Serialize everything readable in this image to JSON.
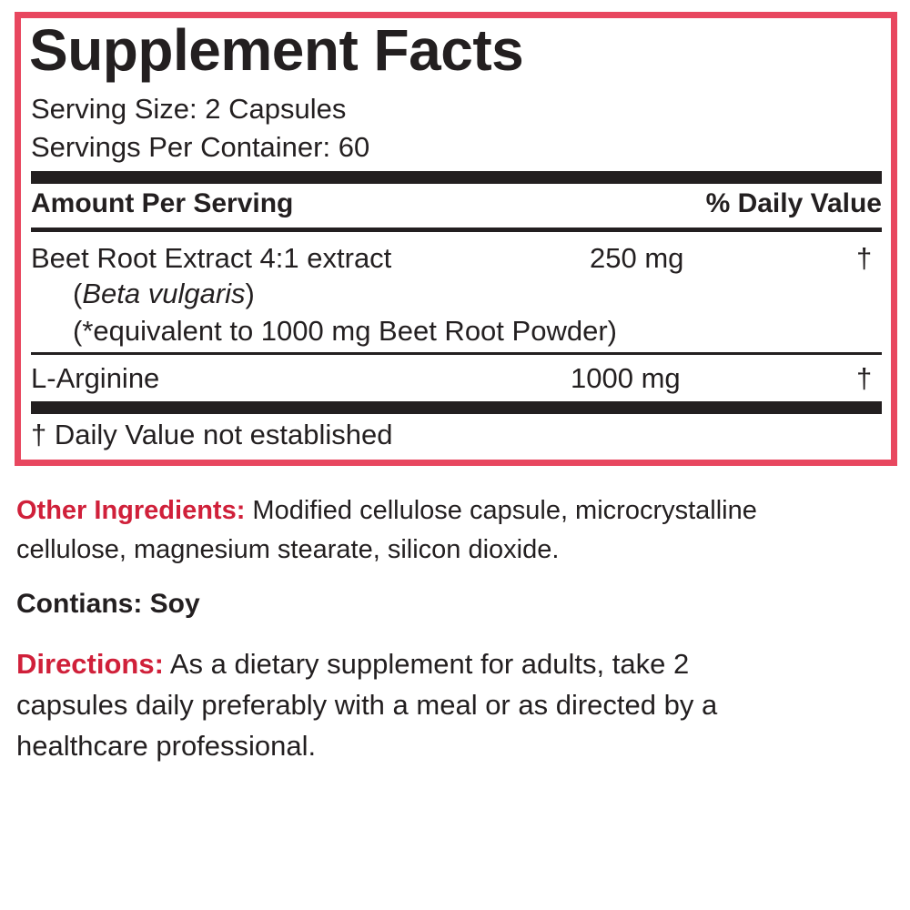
{
  "facts": {
    "title": "Supplement Facts",
    "serving_size": "Serving Size: 2 Capsules",
    "servings_per_container": "Servings Per Container: 60",
    "amount_header": "Amount Per Serving",
    "dv_header": "% Daily Value",
    "rows": [
      {
        "name": "Beet Root Extract 4:1 extract",
        "latin_open": "(",
        "latin": "Beta vulgaris",
        "latin_close": ")",
        "note": "(*equivalent to 1000 mg Beet Root Powder)",
        "amount": "250 mg",
        "dv": "†"
      },
      {
        "name": "L-Arginine",
        "amount": "1000 mg",
        "dv": "†"
      }
    ],
    "footnote": "† Daily Value not established"
  },
  "other_ingredients": {
    "label": "Other Ingredients:",
    "line1": " Modified cellulose capsule, microcrystalline",
    "line2": "cellulose, magnesium stearate, silicon dioxide."
  },
  "contains": "Contians: Soy",
  "directions": {
    "label": "Directions:",
    "line1": " As a dietary supplement for adults, take 2",
    "line2": "capsules daily preferably with a meal or as directed by a",
    "line3": "healthcare professional."
  },
  "colors": {
    "border": "#e8475f",
    "label_red": "#d0203a",
    "text": "#231f20"
  }
}
